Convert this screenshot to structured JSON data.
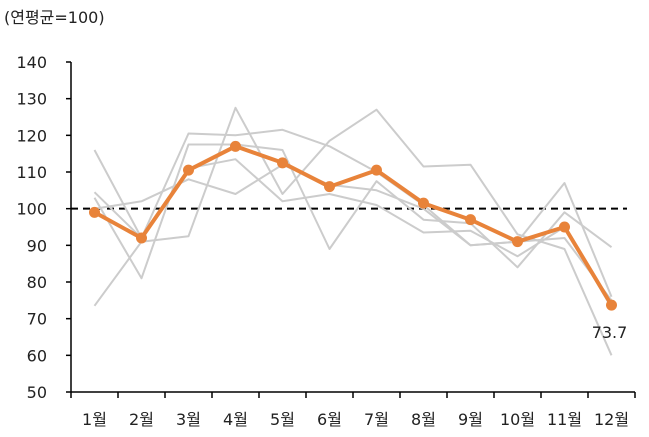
{
  "chart_data": {
    "type": "line",
    "unit_label": "(연평균=100)",
    "categories": [
      "1월",
      "2월",
      "3월",
      "4월",
      "5월",
      "6월",
      "7월",
      "8월",
      "9월",
      "10월",
      "11월",
      "12월"
    ],
    "ylim": [
      50,
      140
    ],
    "yticks": [
      50,
      60,
      70,
      80,
      90,
      100,
      110,
      120,
      130,
      140
    ],
    "reference_line": {
      "value": 100,
      "style": "dashed",
      "color": "#000000"
    },
    "colors": {
      "main": "#e8833a",
      "background_series": "#cccccc",
      "axis": "#000000",
      "reference": "#000000"
    },
    "main_series": {
      "values": [
        99,
        92,
        110.5,
        117,
        112.5,
        106,
        110.5,
        101.5,
        97,
        91,
        95,
        73.7
      ],
      "end_label": "73.7"
    },
    "background_series": [
      {
        "values": [
          116,
          92,
          120.5,
          120,
          121.5,
          117,
          110,
          101,
          90,
          91,
          107,
          76
        ]
      },
      {
        "values": [
          73.5,
          91,
          92.5,
          127.5,
          104,
          118.5,
          127,
          111.5,
          112,
          93,
          89,
          60
        ]
      },
      {
        "values": [
          103,
          81,
          117.5,
          117.5,
          116,
          89,
          107.5,
          97,
          96,
          84,
          99,
          89.5
        ]
      },
      {
        "values": [
          100,
          102,
          108,
          104,
          112,
          106.5,
          105,
          100,
          90,
          91,
          92,
          75
        ]
      },
      {
        "values": [
          104.5,
          92,
          111,
          113.5,
          102,
          104,
          101,
          93.5,
          94,
          87,
          95,
          73
        ]
      }
    ]
  }
}
